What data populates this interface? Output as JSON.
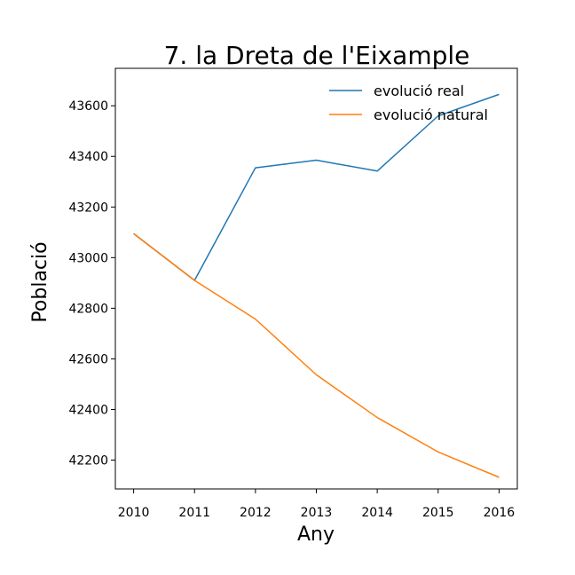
{
  "chart_data": {
    "type": "line",
    "title": "7. la Dreta de l'Eixample",
    "xlabel": "Any",
    "ylabel": "Població",
    "x": [
      2010,
      2011,
      2012,
      2013,
      2014,
      2015,
      2016
    ],
    "x_ticks": [
      "2010",
      "2011",
      "2012",
      "2013",
      "2014",
      "2015",
      "2016"
    ],
    "y_ticks": [
      "42200",
      "42400",
      "42600",
      "42800",
      "43000",
      "43200",
      "43400",
      "43600"
    ],
    "xlim": [
      2009.7,
      2016.3
    ],
    "ylim": [
      42086,
      43748
    ],
    "legend_position": "top-right",
    "grid": false,
    "series": [
      {
        "name": "evolució real",
        "color": "#1f77b4",
        "values": [
          43095,
          42910,
          43355,
          43385,
          43342,
          43560,
          43645
        ]
      },
      {
        "name": "evolució natural",
        "color": "#ff7f0e",
        "values": [
          43095,
          42910,
          42757,
          42537,
          42368,
          42232,
          42132
        ]
      }
    ]
  }
}
